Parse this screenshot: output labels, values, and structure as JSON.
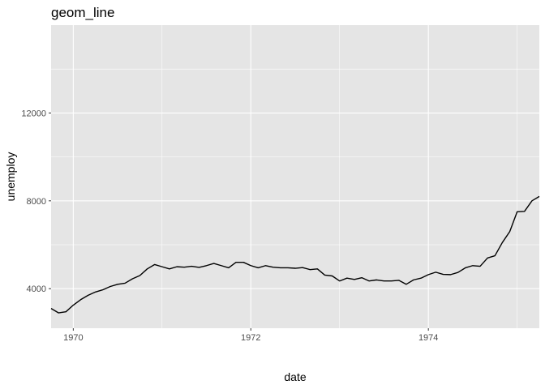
{
  "chart_data": {
    "type": "line",
    "title": "geom_line",
    "xlabel": "date",
    "ylabel": "unemploy",
    "x_ticks": [
      "1970",
      "1972",
      "1974"
    ],
    "y_ticks": [
      "4000",
      "8000",
      "12000"
    ],
    "xlim": [
      1969.75,
      1975.25
    ],
    "ylim": [
      2200,
      16000
    ],
    "grid": true,
    "colors": {
      "panel": "#e5e5e5",
      "grid_major": "#ffffff",
      "line": "#000000"
    },
    "series": [
      {
        "x": [
          1969.75,
          1969.833,
          1969.917,
          1970.0,
          1970.083,
          1970.167,
          1970.25,
          1970.333,
          1970.417,
          1970.5,
          1970.583,
          1970.667,
          1970.75,
          1970.833,
          1970.917,
          1971.0,
          1971.083,
          1971.167,
          1971.25,
          1971.333,
          1971.417,
          1971.5,
          1971.583,
          1971.667,
          1971.75,
          1971.833,
          1971.917,
          1972.0,
          1972.083,
          1972.167,
          1972.25,
          1972.333,
          1972.417,
          1972.5,
          1972.583,
          1972.667,
          1972.75,
          1972.833,
          1972.917,
          1973.0,
          1973.083,
          1973.167,
          1973.25,
          1973.333,
          1973.417,
          1973.5,
          1973.583,
          1973.667,
          1973.75,
          1973.833,
          1973.917,
          1974.0,
          1974.083,
          1974.167,
          1974.25,
          1974.333,
          1974.417,
          1974.5,
          1974.583,
          1974.667,
          1974.75,
          1974.833,
          1974.917,
          1975.0,
          1975.083,
          1975.167,
          1975.25
        ],
        "y": [
          3100,
          2900,
          2950,
          3250,
          3500,
          3700,
          3850,
          3950,
          4100,
          4200,
          4250,
          4450,
          4600,
          4900,
          5100,
          5000,
          4900,
          5000,
          4980,
          5020,
          4970,
          5050,
          5150,
          5050,
          4950,
          5200,
          5200,
          5050,
          4950,
          5050,
          4980,
          4950,
          4950,
          4930,
          4960,
          4870,
          4900,
          4620,
          4580,
          4350,
          4480,
          4420,
          4500,
          4350,
          4400,
          4350,
          4350,
          4380,
          4200,
          4400,
          4480,
          4640,
          4750,
          4650,
          4640,
          4740,
          4950,
          5050,
          5020,
          5400,
          5500,
          6100,
          6600,
          7500,
          7520,
          8000,
          8200
        ]
      }
    ]
  }
}
